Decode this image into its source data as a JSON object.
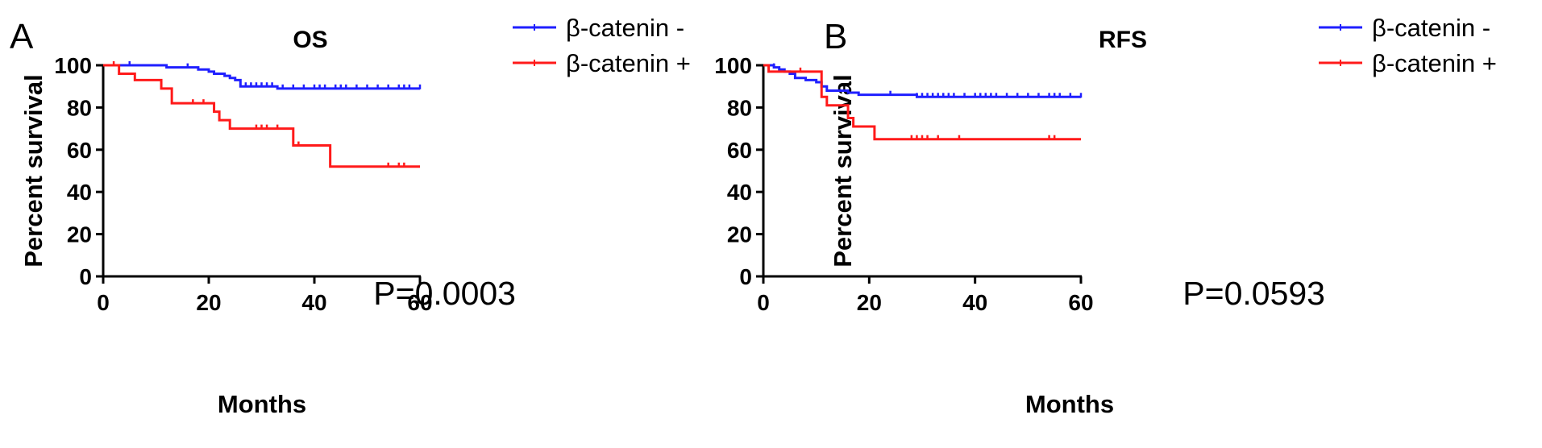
{
  "chart_data": [
    {
      "type": "line",
      "panel_label": "A",
      "title": "OS",
      "xlabel": "Months",
      "ylabel": "Percent survival",
      "xlim": [
        0,
        60
      ],
      "ylim": [
        0,
        100
      ],
      "xticks": [
        0,
        20,
        40,
        60
      ],
      "yticks": [
        0,
        20,
        40,
        60,
        80,
        100
      ],
      "annotation": "P=0.0003",
      "legend_position": "top-right",
      "series": [
        {
          "name": "β-catenin -",
          "color": "#1f1fff",
          "x": [
            0,
            10,
            12,
            14,
            18,
            20,
            21,
            23,
            24,
            25,
            26,
            30,
            33,
            60
          ],
          "y": [
            100,
            100,
            99,
            99,
            98,
            97,
            96,
            95,
            94,
            93,
            90,
            90,
            89,
            89
          ],
          "censored_x": [
            5,
            16,
            27,
            28,
            29,
            30,
            31,
            32,
            34,
            36,
            38,
            40,
            41,
            42,
            44,
            45,
            46,
            48,
            50,
            52,
            54,
            56,
            57,
            58,
            60
          ]
        },
        {
          "name": "β-catenin +",
          "color": "#ff1a1a",
          "x": [
            0,
            3,
            6,
            11,
            13,
            21,
            22,
            24,
            36,
            43,
            60
          ],
          "y": [
            100,
            96,
            93,
            89,
            82,
            78,
            74,
            70,
            62,
            52,
            52
          ],
          "censored_x": [
            2,
            17,
            19,
            29,
            30,
            31,
            33,
            37,
            54,
            56,
            57
          ]
        }
      ]
    },
    {
      "type": "line",
      "panel_label": "B",
      "title": "RFS",
      "xlabel": "Months",
      "ylabel": "Percent survival",
      "xlim": [
        0,
        60
      ],
      "ylim": [
        0,
        100
      ],
      "xticks": [
        0,
        20,
        40,
        60
      ],
      "yticks": [
        0,
        20,
        40,
        60,
        80,
        100
      ],
      "annotation": "P=0.0593",
      "legend_position": "top-right",
      "series": [
        {
          "name": "β-catenin -",
          "color": "#1f1fff",
          "x": [
            0,
            2,
            3,
            4,
            5,
            6,
            8,
            10,
            11,
            12,
            14,
            16,
            18,
            20,
            28,
            29,
            60
          ],
          "y": [
            100,
            99,
            98,
            97,
            96,
            94,
            93,
            92,
            90,
            88,
            88,
            87,
            86,
            86,
            86,
            85,
            85
          ],
          "censored_x": [
            2,
            24,
            29,
            30,
            31,
            32,
            33,
            34,
            35,
            36,
            38,
            40,
            41,
            42,
            43,
            44,
            46,
            48,
            50,
            52,
            54,
            55,
            56,
            58,
            60
          ]
        },
        {
          "name": "β-catenin +",
          "color": "#ff1a1a",
          "x": [
            0,
            1,
            7,
            11,
            12,
            16,
            17,
            18,
            21,
            60
          ],
          "y": [
            100,
            97,
            97,
            85,
            81,
            75,
            71,
            71,
            65,
            65
          ],
          "censored_x": [
            7,
            28,
            29,
            30,
            31,
            33,
            37,
            54,
            55
          ]
        }
      ]
    }
  ]
}
